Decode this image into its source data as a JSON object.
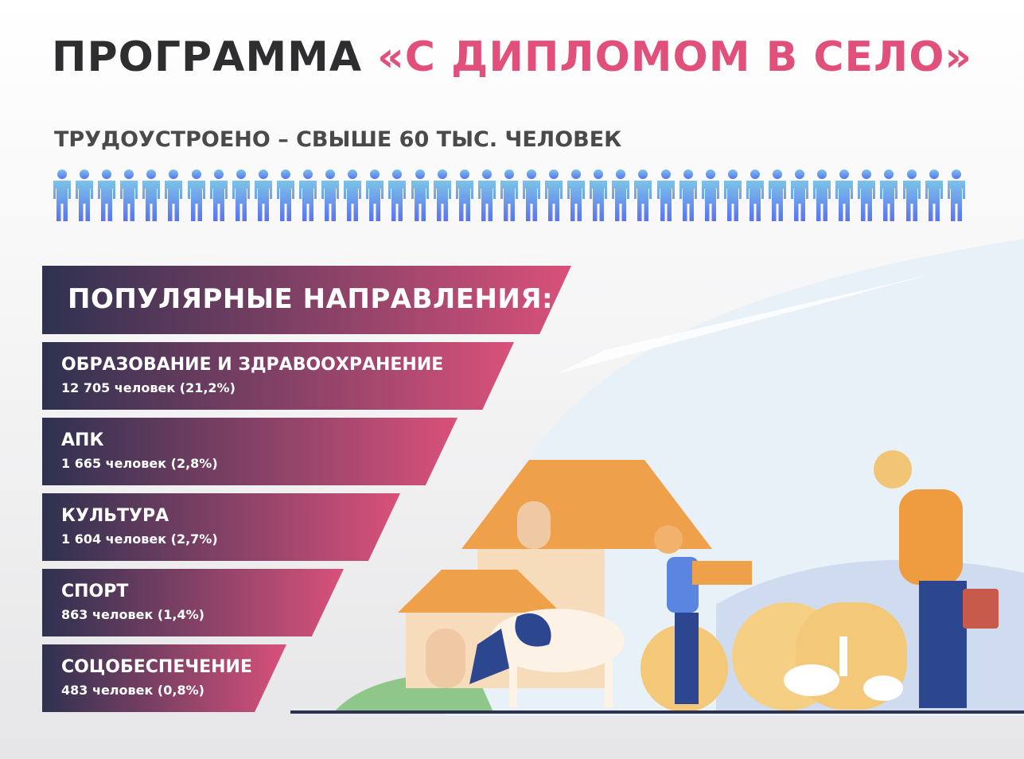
{
  "title": {
    "prefix": "ПРОГРАММА",
    "accent": "«С ДИПЛОМОМ В СЕЛО»"
  },
  "subtitle": "ТРУДОУСТРОЕНО – СВЫШЕ 60 ТЫС. ЧЕЛОВЕК",
  "people_icon": "person-icon",
  "people_count_shown": 41,
  "header_banner": "ПОПУЛЯРНЫЕ НАПРАВЛЕНИЯ:",
  "directions": [
    {
      "name": "ОБРАЗОВАНИЕ И ЗДРАВООХРАНЕНИЕ",
      "value": " 12 705 человек (21,2%)"
    },
    {
      "name": "АПК",
      "value": "1 665 человек (2,8%)"
    },
    {
      "name": "КУЛЬТУРА",
      "value": "1 604 человек (2,7%)"
    },
    {
      "name": "СПОРТ",
      "value": "863 человек (1,4%)"
    },
    {
      "name": "СОЦОБЕСПЕЧЕНИЕ",
      "value": "483 человек   (0,8%)"
    }
  ],
  "colors": {
    "accent": "#e0507a",
    "banner_dark": "#2f3150",
    "people": "#6a9cf0"
  }
}
